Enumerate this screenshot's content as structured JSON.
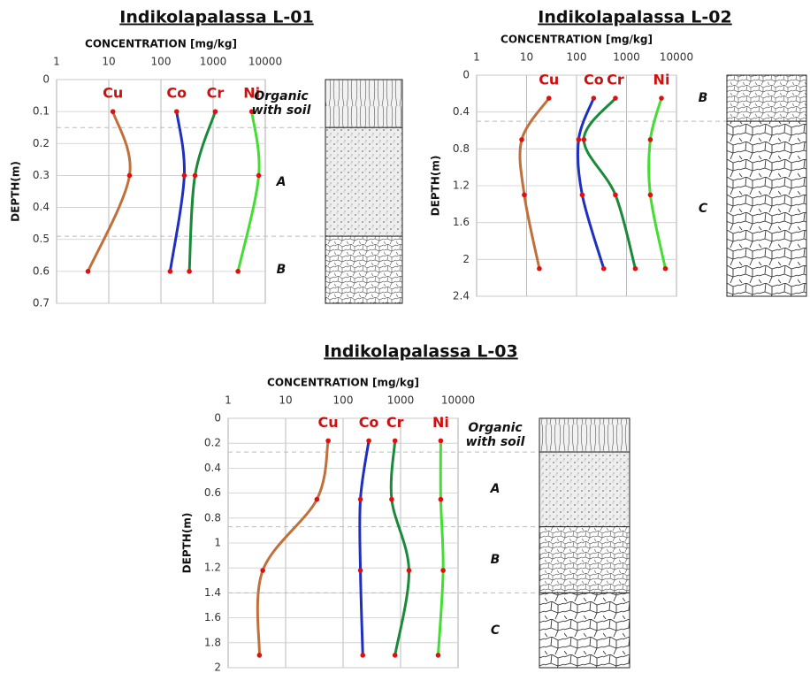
{
  "chart_data": [
    {
      "type": "line",
      "title": "Indikolapalassa L-01",
      "xlabel": "CONCENTRATION [mg/kg]",
      "ylabel": "DEPTH(m)",
      "xscale": "log",
      "xlim": [
        1,
        10000
      ],
      "xticks": [
        1,
        10,
        100,
        1000,
        10000
      ],
      "ylim": [
        0,
        0.7
      ],
      "yticks": [
        0,
        0.1,
        0.2,
        0.3,
        0.4,
        0.5,
        0.6,
        0.7
      ],
      "y_inverted": true,
      "grid": true,
      "series": [
        {
          "name": "Cu",
          "color": "#c0703a",
          "x": [
            12,
            25,
            4
          ],
          "y": [
            0.1,
            0.3,
            0.6
          ]
        },
        {
          "name": "Co",
          "color": "#1f2fc0",
          "x": [
            200,
            280,
            150
          ],
          "y": [
            0.1,
            0.3,
            0.6
          ]
        },
        {
          "name": "Cr",
          "color": "#1a8a3a",
          "x": [
            1100,
            450,
            350
          ],
          "y": [
            0.1,
            0.3,
            0.6
          ]
        },
        {
          "name": "Ni",
          "color": "#44dd33",
          "x": [
            5500,
            7500,
            3000
          ],
          "y": [
            0.1,
            0.3,
            0.6
          ]
        }
      ],
      "horizons": [
        {
          "label": "Organic with soil",
          "bottom": 0.15
        },
        {
          "label": "A",
          "bottom": 0.49
        },
        {
          "label": "B"
        }
      ]
    },
    {
      "type": "line",
      "title": "Indikolapalassa L-02",
      "xlabel": "CONCENTRATION [mg/kg]",
      "ylabel": "DEPTH(m)",
      "xscale": "log",
      "xlim": [
        1,
        10000
      ],
      "xticks": [
        1,
        10,
        100,
        1000,
        10000
      ],
      "ylim": [
        0,
        2.4
      ],
      "yticks": [
        0,
        0.4,
        0.8,
        1.2,
        1.6,
        2,
        2.4
      ],
      "y_inverted": true,
      "grid": true,
      "series": [
        {
          "name": "Cu",
          "color": "#c0703a",
          "x": [
            28,
            8,
            9,
            18
          ],
          "y": [
            0.25,
            0.7,
            1.3,
            2.1
          ]
        },
        {
          "name": "Co",
          "color": "#1f2fc0",
          "x": [
            220,
            110,
            130,
            350
          ],
          "y": [
            0.25,
            0.7,
            1.3,
            2.1
          ]
        },
        {
          "name": "Cr",
          "color": "#1a8a3a",
          "x": [
            600,
            140,
            600,
            1500
          ],
          "y": [
            0.25,
            0.7,
            1.3,
            2.1
          ]
        },
        {
          "name": "Ni",
          "color": "#44dd33",
          "x": [
            5000,
            3000,
            3000,
            6000
          ],
          "y": [
            0.25,
            0.7,
            1.3,
            2.1
          ]
        }
      ],
      "horizons": [
        {
          "label": "B",
          "bottom": 0.5
        },
        {
          "label": "C"
        }
      ]
    },
    {
      "type": "line",
      "title": "Indikolapalassa L-03",
      "xlabel": "CONCENTRATION [mg/kg]",
      "ylabel": "DEPTH(m)",
      "xscale": "log",
      "xlim": [
        1,
        10000
      ],
      "xticks": [
        1,
        10,
        100,
        1000,
        10000
      ],
      "ylim": [
        0,
        2
      ],
      "yticks": [
        0,
        0.2,
        0.4,
        0.6,
        0.8,
        1,
        1.2,
        1.4,
        1.6,
        1.8,
        2
      ],
      "y_inverted": true,
      "grid": true,
      "series": [
        {
          "name": "Cu",
          "color": "#c0703a",
          "x": [
            55,
            35,
            4,
            3.5
          ],
          "y": [
            0.18,
            0.65,
            1.22,
            1.9
          ]
        },
        {
          "name": "Co",
          "color": "#1f2fc0",
          "x": [
            280,
            200,
            200,
            220
          ],
          "y": [
            0.18,
            0.65,
            1.22,
            1.9
          ]
        },
        {
          "name": "Cr",
          "color": "#1a8a3a",
          "x": [
            800,
            700,
            1400,
            800
          ],
          "y": [
            0.18,
            0.65,
            1.22,
            1.9
          ]
        },
        {
          "name": "Ni",
          "color": "#44dd33",
          "x": [
            5000,
            5000,
            5500,
            4500
          ],
          "y": [
            0.18,
            0.65,
            1.22,
            1.9
          ]
        }
      ],
      "horizons": [
        {
          "label": "Organic with soil",
          "bottom": 0.27
        },
        {
          "label": "A",
          "bottom": 0.87
        },
        {
          "label": "B",
          "bottom": 1.4
        },
        {
          "label": "C"
        }
      ]
    }
  ]
}
